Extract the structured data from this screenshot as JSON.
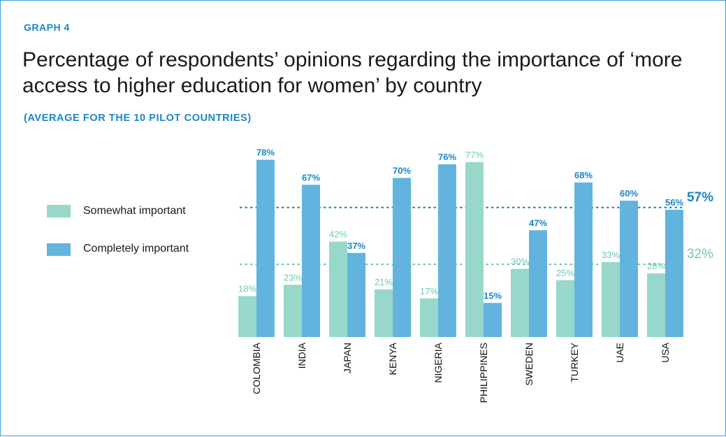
{
  "header": {
    "graph_label": "GRAPH 4",
    "title": "Percentage of respondents’ opinions regarding the importance of ‘more access to higher education for women’ by country",
    "subtitle": "(AVERAGE FOR THE 10 PILOT COUNTRIES)"
  },
  "legend": {
    "somewhat": "Somewhat important",
    "completely": "Completely important"
  },
  "colors": {
    "somewhat": "#98d8cb",
    "completely": "#62b4de",
    "somewhat_label": "#6fc8b3",
    "completely_label": "#1b86c6",
    "border": "#3a9bd5"
  },
  "chart_data": {
    "type": "bar",
    "categories": [
      "COLOMBIA",
      "INDIA",
      "JAPAN",
      "KENYA",
      "NIGERIA",
      "PHILIPPINES",
      "SWEDEN",
      "TURKEY",
      "UAE",
      "USA"
    ],
    "series": [
      {
        "name": "Somewhat important",
        "values": [
          18,
          23,
          42,
          21,
          17,
          77,
          30,
          25,
          33,
          28
        ]
      },
      {
        "name": "Completely important",
        "values": [
          78,
          67,
          37,
          70,
          76,
          15,
          47,
          68,
          60,
          56
        ]
      }
    ],
    "value_labels": {
      "somewhat": [
        "18%",
        "23%",
        "42%",
        "21%",
        "17%",
        "77%",
        "30%",
        "25%",
        "33%",
        "28%"
      ],
      "completely": [
        "78%",
        "67%",
        "37%",
        "70%",
        "76%",
        "15%",
        "47%",
        "68%",
        "60%",
        "56%"
      ]
    },
    "averages": [
      {
        "series": "Completely important",
        "value": 57,
        "label": "57%"
      },
      {
        "series": "Somewhat important",
        "value": 32,
        "label": "32%"
      }
    ],
    "ylim": [
      0,
      80
    ],
    "grid": false,
    "legend_position": "left"
  }
}
